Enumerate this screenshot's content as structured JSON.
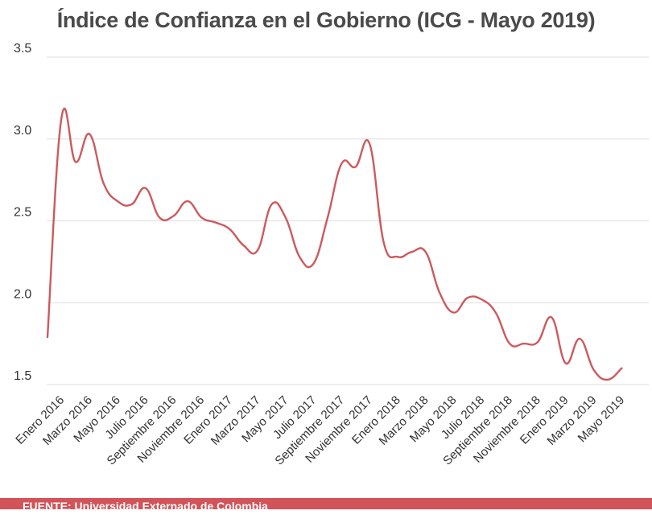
{
  "colors": {
    "line": "#cc5a5e",
    "footer": "#d25358",
    "grid": "#dddddd"
  },
  "footer": {
    "text": "FUENTE: Universidad Externado de Colombia"
  },
  "chart_data": {
    "type": "line",
    "title": "Índice de Confianza en el Gobierno (ICG - Mayo 2019)",
    "xlabel": "",
    "ylabel": "",
    "ylim": [
      1.5,
      3.5
    ],
    "yticks": [
      "3.5",
      "3.0",
      "2.5",
      "2.0",
      "1.5"
    ],
    "grid": true,
    "legend": "none",
    "x_tick_labels": [
      "Enero 2016",
      "Marzo 2016",
      "Mayo 2016",
      "Julio 2016",
      "Septiembre 2016",
      "Noviembre 2016",
      "Enero 2017",
      "Marzo 2017",
      "Mayo 2017",
      "Julio 2017",
      "Septiembre 2017",
      "Noviembre 2017",
      "Enero 2018",
      "Marzo 2018",
      "Mayo 2018",
      "Julio 2018",
      "Septiembre 2018",
      "Noviembre 2018",
      "Enero 2019",
      "Marzo 2019",
      "Mayo 2019"
    ],
    "x": [
      "Dic 2015",
      "Ene 2016",
      "Feb 2016",
      "Mar 2016",
      "Abr 2016",
      "May 2016",
      "Jun 2016",
      "Jul 2016",
      "Ago 2016",
      "Sep 2016",
      "Oct 2016",
      "Nov 2016",
      "Dic 2016",
      "Ene 2017",
      "Feb 2017",
      "Mar 2017",
      "Abr 2017",
      "May 2017",
      "Jun 2017",
      "Jul 2017",
      "Ago 2017",
      "Sep 2017",
      "Oct 2017",
      "Nov 2017",
      "Dic 2017",
      "Ene 2018",
      "Feb 2018",
      "Mar 2018",
      "Abr 2018",
      "May 2018",
      "Jun 2018",
      "Jul 2018",
      "Ago 2018",
      "Sep 2018",
      "Oct 2018",
      "Nov 2018",
      "Dic 2018",
      "Ene 2019",
      "Feb 2019",
      "Mar 2019",
      "Abr 2019",
      "May 2019"
    ],
    "series": [
      {
        "values": [
          1.79,
          3.13,
          2.86,
          3.03,
          2.73,
          2.62,
          2.6,
          2.7,
          2.52,
          2.53,
          2.62,
          2.52,
          2.49,
          2.45,
          2.35,
          2.32,
          2.6,
          2.52,
          2.28,
          2.24,
          2.52,
          2.85,
          2.83,
          2.97,
          2.37,
          2.28,
          2.31,
          2.31,
          2.06,
          1.94,
          2.03,
          2.02,
          1.94,
          1.75,
          1.75,
          1.76,
          1.91,
          1.63,
          1.78,
          1.59,
          1.53,
          1.6
        ]
      }
    ]
  }
}
